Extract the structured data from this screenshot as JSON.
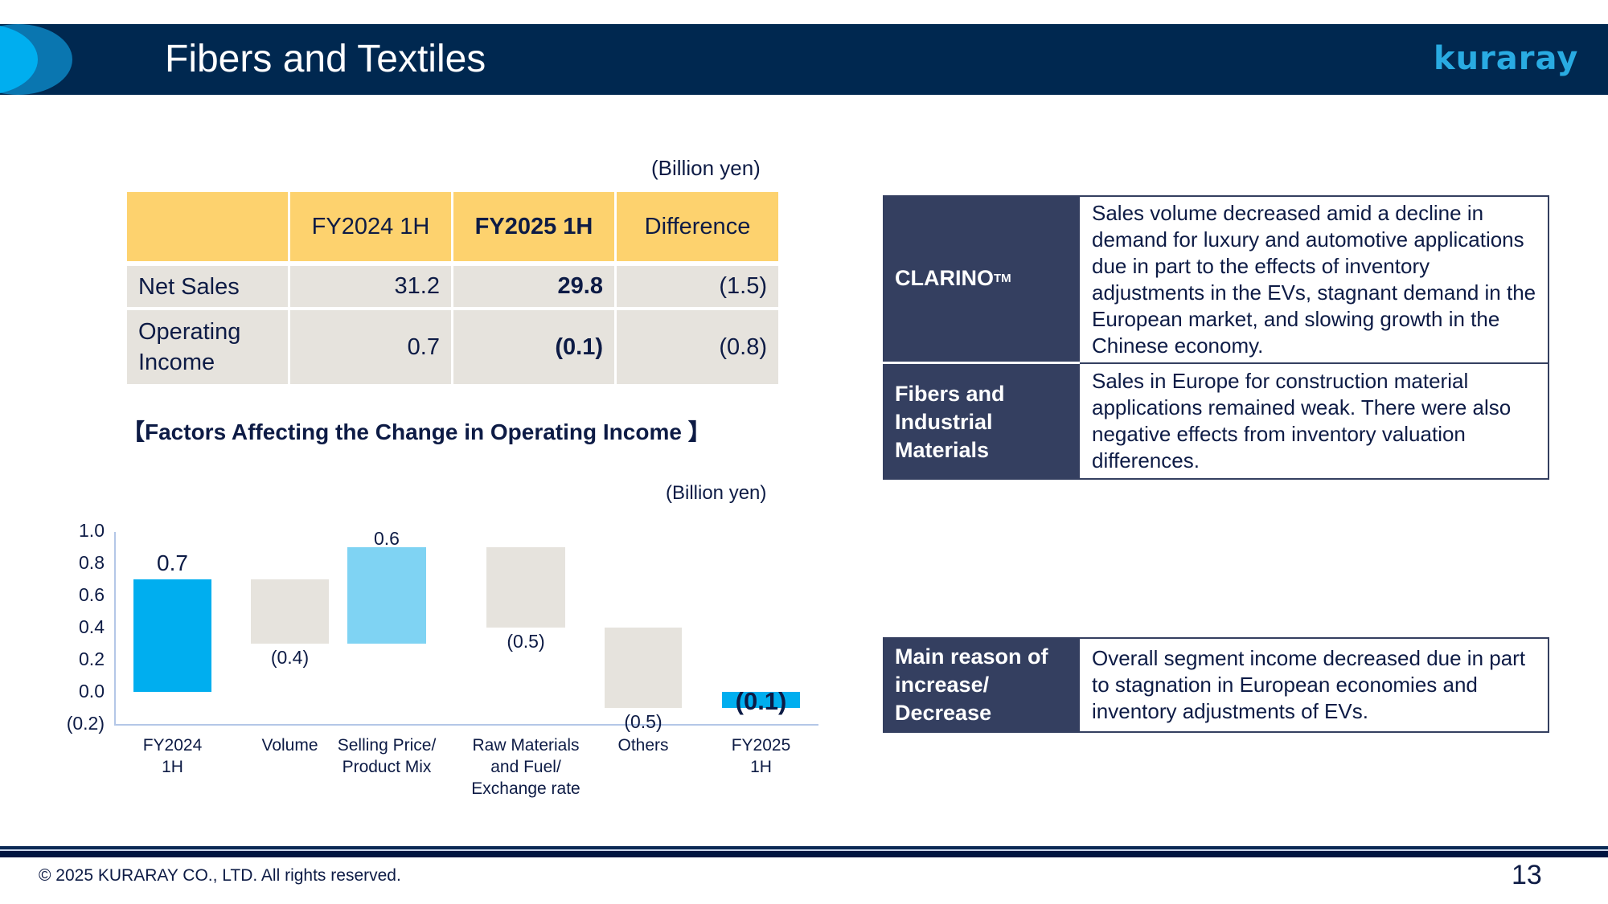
{
  "header": {
    "title": "Fibers and Textiles",
    "logo_text": "kuraray",
    "colors": {
      "bar": "#002850",
      "circle_light": "#00AEEF",
      "circle_dark": "#0A76B0",
      "logo": "#29ABE2"
    }
  },
  "summary_table": {
    "unit": "(Billion yen)",
    "columns": [
      "",
      "FY2024 1H",
      "FY2025 1H",
      "Difference"
    ],
    "rows": [
      {
        "label": "Net Sales",
        "fy2024_1h": "31.2",
        "fy2025_1h": "29.8",
        "difference": "(1.5)"
      },
      {
        "label_line1": "Operating",
        "label_line2": "Income",
        "fy2024_1h": "0.7",
        "fy2025_1h": "(0.1)",
        "difference": "(0.8)"
      }
    ],
    "colors": {
      "header_bg": "#FDD26E",
      "body_bg": "#E6E3DD"
    }
  },
  "factors_section": {
    "heading": "【Factors Affecting the Change in Operating Income 】",
    "unit": "(Billion yen)"
  },
  "chart_data": {
    "type": "bar",
    "subtype": "waterfall",
    "title": "Factors Affecting the Change in Operating Income",
    "unit": "(Billion yen)",
    "categories": [
      "FY2024 1H",
      "Volume",
      "Selling Price/ Product Mix",
      "Raw Materials and Fuel/ Exchange rate",
      "Others",
      "FY2025 1H"
    ],
    "category_labels": [
      "FY2024\n1H",
      "Volume",
      "Selling Price/\nProduct Mix",
      "Raw Materials\nand Fuel/\nExchange rate",
      "Others",
      "FY2025\n1H"
    ],
    "values": [
      0.7,
      -0.4,
      0.6,
      -0.5,
      -0.5,
      -0.1
    ],
    "value_labels": [
      "0.7",
      "(0.4)",
      "0.6",
      "(0.5)",
      "(0.5)",
      "(0.1)"
    ],
    "bar_ranges": [
      [
        0,
        0.7
      ],
      [
        0.3,
        0.7
      ],
      [
        0.3,
        0.9
      ],
      [
        0.4,
        0.9
      ],
      [
        -0.1,
        0.4
      ],
      [
        -0.1,
        0
      ]
    ],
    "bar_colors": [
      "#00AEEF",
      "#E6E3DD",
      "#7FD3F3",
      "#E6E3DD",
      "#E6E3DD",
      "#00AEEF"
    ],
    "y_ticks": [
      "1.0",
      "0.8",
      "0.6",
      "0.4",
      "0.2",
      "0.0",
      "(0.2)"
    ],
    "ylim": [
      -0.2,
      1.0
    ],
    "xlabel": "",
    "ylabel": "",
    "grid": false,
    "legend": null
  },
  "explanations": [
    {
      "label": "CLARINO",
      "label_suffix": "TM",
      "text": "Sales volume decreased amid a decline in demand for luxury and automotive applications due in part to the effects of inventory adjustments in the EVs, stagnant demand in the European market, and slowing growth in the Chinese economy."
    },
    {
      "label": "Fibers and Industrial Materials",
      "text": "Sales in Europe for construction material applications remained weak. There were also negative effects from inventory valuation differences."
    },
    {
      "label": "Main reason of increase/ Decrease",
      "text": "Overall segment income decreased due in part to stagnation in European economies and inventory adjustments of EVs."
    }
  ],
  "footer": {
    "copyright": "© 2025 KURARAY CO., LTD. All rights reserved.",
    "page_number": "13"
  }
}
